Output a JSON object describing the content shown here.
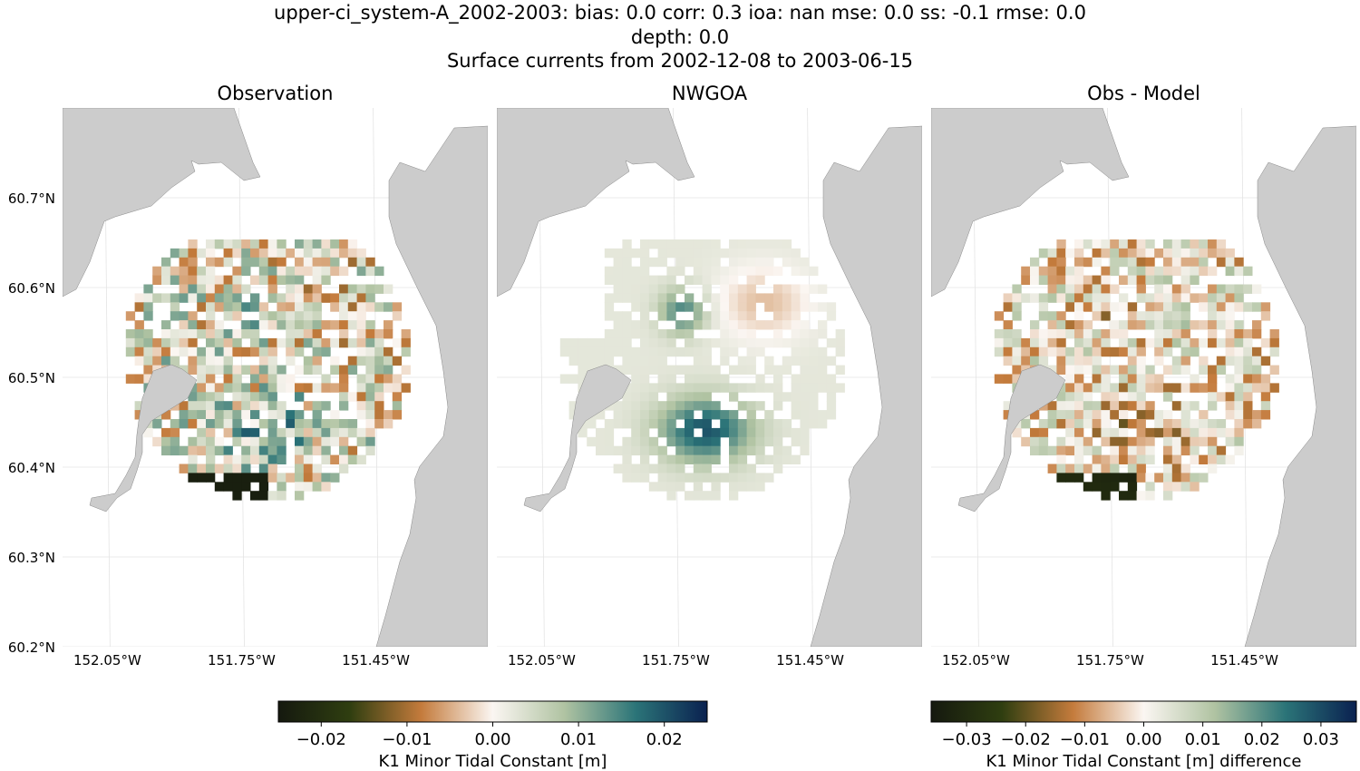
{
  "chart_data": {
    "type": "heatmap",
    "title_lines": [
      "upper-ci_system-A_2002-2003: bias: 0.0  corr: 0.3  ioa: nan  mse: 0.0  ss: -0.1  rmse: 0.0",
      "depth: 0.0",
      "Surface currents from 2002-12-08 to 2003-06-15"
    ],
    "panels": [
      {
        "title": "Observation"
      },
      {
        "title": "NWGOA"
      },
      {
        "title": "Obs - Model"
      }
    ],
    "lat_ticks": [
      "60.7°N",
      "60.6°N",
      "60.5°N",
      "60.4°N",
      "60.3°N",
      "60.2°N"
    ],
    "lon_ticks": [
      "152.05°W",
      "151.75°W",
      "151.45°W"
    ],
    "lat_range": [
      60.2,
      60.8
    ],
    "lon_range": [
      -152.15,
      -151.2
    ],
    "land_color": "#cccccc",
    "colorbars": [
      {
        "label": "K1 Minor Tidal Constant [m]",
        "range": [
          -0.025,
          0.025
        ],
        "ticks": [
          "−0.02",
          "−0.01",
          "0.00",
          "0.01",
          "0.02"
        ],
        "tick_values": [
          -0.02,
          -0.01,
          0,
          0.01,
          0.02
        ]
      },
      {
        "label": "K1 Minor Tidal Constant [m] difference",
        "range": [
          -0.036,
          0.036
        ],
        "ticks": [
          "−0.03",
          "−0.02",
          "−0.01",
          "0.00",
          "0.01",
          "0.02",
          "0.03"
        ],
        "tick_values": [
          -0.03,
          -0.02,
          -0.01,
          0,
          0.01,
          0.02,
          0.03
        ]
      }
    ],
    "colormap": [
      "#15190f",
      "#2f3e10",
      "#c47b3c",
      "#fbf6f2",
      "#b0c3a2",
      "#2b7478",
      "#0a2150"
    ]
  }
}
